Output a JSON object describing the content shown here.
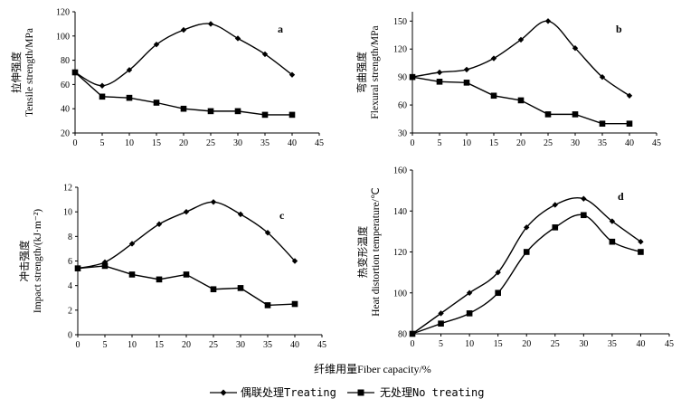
{
  "chart_data": [
    {
      "type": "line",
      "panel": "a",
      "x": [
        0,
        5,
        10,
        15,
        20,
        25,
        30,
        35,
        40
      ],
      "xlim": [
        0,
        45
      ],
      "xticks": [
        0,
        5,
        10,
        15,
        20,
        25,
        30,
        35,
        40,
        45
      ],
      "ylim": [
        20,
        120
      ],
      "yticks": [
        20,
        40,
        60,
        80,
        100,
        120
      ],
      "ylabel_cn": "拉伸强度",
      "ylabel_en": "Tensile strength/MPa",
      "series": [
        {
          "name": "偶联处理Treating",
          "marker": "diamond",
          "values": [
            70,
            59,
            72,
            93,
            105,
            110,
            98,
            85,
            68
          ]
        },
        {
          "name": "无处理No treating",
          "marker": "square",
          "values": [
            70,
            50,
            49,
            45,
            40,
            38,
            38,
            35,
            35
          ]
        }
      ]
    },
    {
      "type": "line",
      "panel": "b",
      "x": [
        0,
        5,
        10,
        15,
        20,
        25,
        30,
        35,
        40
      ],
      "xlim": [
        0,
        45
      ],
      "xticks": [
        0,
        5,
        10,
        15,
        20,
        25,
        30,
        35,
        40,
        45
      ],
      "ylim": [
        30,
        160
      ],
      "yticks": [
        30,
        60,
        90,
        120,
        150
      ],
      "ylabel_cn": "弯曲强度",
      "ylabel_en": "Flexural strength/MPa",
      "series": [
        {
          "name": "偶联处理Treating",
          "marker": "diamond",
          "values": [
            90,
            95,
            98,
            110,
            130,
            150,
            121,
            90,
            70
          ]
        },
        {
          "name": "无处理No treating",
          "marker": "square",
          "values": [
            90,
            85,
            84,
            70,
            65,
            50,
            50,
            40,
            40
          ]
        }
      ]
    },
    {
      "type": "line",
      "panel": "c",
      "x": [
        0,
        5,
        10,
        15,
        20,
        25,
        30,
        35,
        40
      ],
      "xlim": [
        0,
        45
      ],
      "xticks": [
        0,
        5,
        10,
        15,
        20,
        25,
        30,
        35,
        40,
        45
      ],
      "ylim": [
        0,
        12
      ],
      "yticks": [
        0,
        2,
        4,
        6,
        8,
        10,
        12
      ],
      "ylabel_cn": "冲击强度",
      "ylabel_en": "Impact strength/(kJ·m⁻²)",
      "series": [
        {
          "name": "偶联处理Treating",
          "marker": "diamond",
          "values": [
            5.4,
            5.9,
            7.4,
            9.0,
            10.0,
            10.8,
            9.8,
            8.3,
            6.0
          ]
        },
        {
          "name": "无处理No treating",
          "marker": "square",
          "values": [
            5.4,
            5.6,
            4.9,
            4.5,
            4.9,
            3.7,
            3.8,
            2.4,
            2.5
          ]
        }
      ]
    },
    {
      "type": "line",
      "panel": "d",
      "x": [
        0,
        5,
        10,
        15,
        20,
        25,
        30,
        35,
        40
      ],
      "xlim": [
        0,
        45
      ],
      "xticks": [
        0,
        5,
        10,
        15,
        20,
        25,
        30,
        35,
        40,
        45
      ],
      "ylim": [
        80,
        160
      ],
      "yticks": [
        80,
        100,
        120,
        140,
        160
      ],
      "ylabel_cn": "热变形温度",
      "ylabel_en": "Heat distortion temperature/℃",
      "series": [
        {
          "name": "偶联处理Treating",
          "marker": "diamond",
          "values": [
            80,
            90,
            100,
            110,
            132,
            143,
            146,
            135,
            125
          ]
        },
        {
          "name": "无处理No treating",
          "marker": "square",
          "values": [
            80,
            85,
            90,
            100,
            120,
            132,
            138,
            125,
            120
          ]
        }
      ]
    }
  ],
  "xlabel": "纤维用量Fiber capacity/%",
  "legend": [
    {
      "name": "偶联处理Treating",
      "marker": "diamond"
    },
    {
      "name": "无处理No treating",
      "marker": "square"
    }
  ],
  "colors": {
    "line": "#000000",
    "background": "#ffffff"
  }
}
